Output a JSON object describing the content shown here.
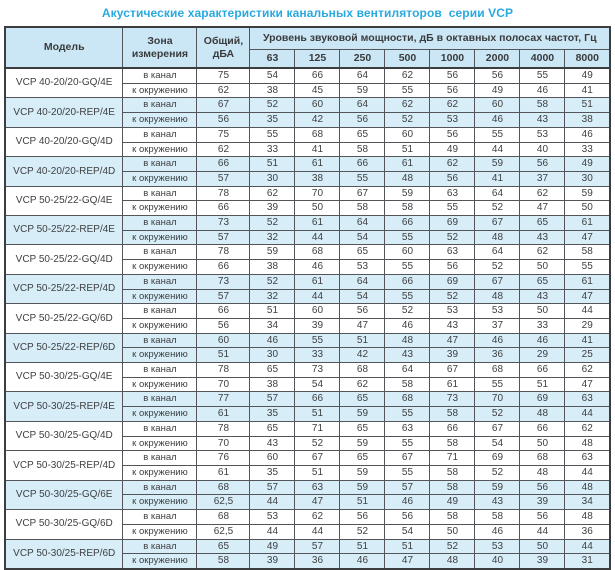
{
  "title": "Акустические характеристики канальных вентиляторов  серии VCP",
  "colors": {
    "title_accent": "#29a9e0",
    "header_bg": "#cbe7f5",
    "shaded_row_bg": "#d7edf8",
    "border": "#54555a",
    "text": "#3f4042"
  },
  "table": {
    "col_model": "Модель",
    "col_zone": "Зона измерения",
    "col_total": "Общий, дБА",
    "band_header": "Уровень звуковой мощности, дБ в октавных полосах частот, Гц",
    "frequencies": [
      "63",
      "125",
      "250",
      "500",
      "1000",
      "2000",
      "4000",
      "8000"
    ],
    "zone_in_duct": "в канал",
    "zone_ambient": "к окружению",
    "models": [
      {
        "name": "VCP 40-20/20-GQ/4E",
        "shaded": false,
        "in_duct": {
          "total": "75",
          "bands": [
            "54",
            "66",
            "64",
            "62",
            "56",
            "56",
            "55",
            "49"
          ]
        },
        "ambient": {
          "total": "62",
          "bands": [
            "38",
            "45",
            "59",
            "55",
            "56",
            "49",
            "46",
            "41"
          ]
        }
      },
      {
        "name": "VCP 40-20/20-REP/4E",
        "shaded": true,
        "in_duct": {
          "total": "67",
          "bands": [
            "52",
            "60",
            "64",
            "62",
            "62",
            "60",
            "58",
            "51"
          ]
        },
        "ambient": {
          "total": "56",
          "bands": [
            "35",
            "42",
            "56",
            "52",
            "53",
            "46",
            "43",
            "38"
          ]
        }
      },
      {
        "name": "VCP 40-20/20-GQ/4D",
        "shaded": false,
        "in_duct": {
          "total": "75",
          "bands": [
            "55",
            "68",
            "65",
            "60",
            "56",
            "55",
            "53",
            "46"
          ]
        },
        "ambient": {
          "total": "62",
          "bands": [
            "33",
            "41",
            "58",
            "51",
            "49",
            "44",
            "40",
            "33"
          ]
        }
      },
      {
        "name": "VCP 40-20/20-REP/4D",
        "shaded": true,
        "in_duct": {
          "total": "66",
          "bands": [
            "51",
            "61",
            "66",
            "61",
            "62",
            "59",
            "56",
            "49"
          ]
        },
        "ambient": {
          "total": "57",
          "bands": [
            "30",
            "38",
            "55",
            "48",
            "56",
            "41",
            "37",
            "30"
          ]
        }
      },
      {
        "name": "VCP 50-25/22-GQ/4E",
        "shaded": false,
        "in_duct": {
          "total": "78",
          "bands": [
            "62",
            "70",
            "67",
            "59",
            "63",
            "64",
            "62",
            "59"
          ]
        },
        "ambient": {
          "total": "66",
          "bands": [
            "39",
            "50",
            "58",
            "58",
            "55",
            "52",
            "47",
            "50"
          ]
        }
      },
      {
        "name": "VCP 50-25/22-REP/4E",
        "shaded": true,
        "in_duct": {
          "total": "73",
          "bands": [
            "52",
            "61",
            "64",
            "66",
            "69",
            "67",
            "65",
            "61"
          ]
        },
        "ambient": {
          "total": "57",
          "bands": [
            "32",
            "44",
            "54",
            "55",
            "52",
            "48",
            "43",
            "47"
          ]
        }
      },
      {
        "name": "VCP 50-25/22-GQ/4D",
        "shaded": false,
        "in_duct": {
          "total": "78",
          "bands": [
            "59",
            "68",
            "65",
            "60",
            "63",
            "64",
            "62",
            "58"
          ]
        },
        "ambient": {
          "total": "66",
          "bands": [
            "38",
            "46",
            "53",
            "55",
            "56",
            "52",
            "50",
            "55"
          ]
        }
      },
      {
        "name": "VCP 50-25/22-REP/4D",
        "shaded": true,
        "in_duct": {
          "total": "73",
          "bands": [
            "52",
            "61",
            "64",
            "66",
            "69",
            "67",
            "65",
            "61"
          ]
        },
        "ambient": {
          "total": "57",
          "bands": [
            "32",
            "44",
            "54",
            "55",
            "52",
            "48",
            "43",
            "47"
          ]
        }
      },
      {
        "name": "VCP 50-25/22-GQ/6D",
        "shaded": false,
        "in_duct": {
          "total": "66",
          "bands": [
            "51",
            "60",
            "56",
            "52",
            "53",
            "53",
            "50",
            "44"
          ]
        },
        "ambient": {
          "total": "56",
          "bands": [
            "34",
            "39",
            "47",
            "46",
            "43",
            "37",
            "33",
            "29"
          ]
        }
      },
      {
        "name": "VCP 50-25/22-REP/6D",
        "shaded": true,
        "in_duct": {
          "total": "60",
          "bands": [
            "46",
            "55",
            "51",
            "48",
            "47",
            "46",
            "46",
            "41"
          ]
        },
        "ambient": {
          "total": "51",
          "bands": [
            "30",
            "33",
            "42",
            "43",
            "39",
            "36",
            "29",
            "25"
          ]
        }
      },
      {
        "name": "VCP 50-30/25-GQ/4E",
        "shaded": false,
        "in_duct": {
          "total": "78",
          "bands": [
            "65",
            "73",
            "68",
            "64",
            "67",
            "68",
            "66",
            "62"
          ]
        },
        "ambient": {
          "total": "70",
          "bands": [
            "38",
            "54",
            "62",
            "58",
            "61",
            "55",
            "51",
            "47"
          ]
        }
      },
      {
        "name": "VCP 50-30/25-REP/4E",
        "shaded": true,
        "in_duct": {
          "total": "77",
          "bands": [
            "57",
            "66",
            "65",
            "68",
            "73",
            "70",
            "69",
            "63"
          ]
        },
        "ambient": {
          "total": "61",
          "bands": [
            "35",
            "51",
            "59",
            "55",
            "58",
            "52",
            "48",
            "44"
          ]
        }
      },
      {
        "name": "VCP 50-30/25-GQ/4D",
        "shaded": false,
        "in_duct": {
          "total": "78",
          "bands": [
            "65",
            "71",
            "65",
            "63",
            "66",
            "67",
            "66",
            "62"
          ]
        },
        "ambient": {
          "total": "70",
          "bands": [
            "43",
            "52",
            "59",
            "55",
            "58",
            "54",
            "50",
            "48"
          ]
        }
      },
      {
        "name": "VCP 50-30/25-REP/4D",
        "shaded": false,
        "in_duct": {
          "total": "76",
          "bands": [
            "60",
            "67",
            "65",
            "67",
            "71",
            "69",
            "68",
            "63"
          ]
        },
        "ambient": {
          "total": "61",
          "bands": [
            "35",
            "51",
            "59",
            "55",
            "58",
            "52",
            "48",
            "44"
          ]
        }
      },
      {
        "name": "VCP 50-30/25-GQ/6E",
        "shaded": true,
        "in_duct": {
          "total": "68",
          "bands": [
            "57",
            "63",
            "59",
            "57",
            "58",
            "59",
            "56",
            "48"
          ]
        },
        "ambient": {
          "total": "62,5",
          "bands": [
            "44",
            "47",
            "51",
            "46",
            "49",
            "43",
            "39",
            "34"
          ]
        }
      },
      {
        "name": "VCP 50-30/25-GQ/6D",
        "shaded": false,
        "in_duct": {
          "total": "68",
          "bands": [
            "53",
            "62",
            "56",
            "56",
            "58",
            "58",
            "56",
            "48"
          ]
        },
        "ambient": {
          "total": "62,5",
          "bands": [
            "44",
            "44",
            "52",
            "54",
            "50",
            "46",
            "44",
            "36"
          ]
        }
      },
      {
        "name": "VCP 50-30/25-REP/6D",
        "shaded": true,
        "in_duct": {
          "total": "65",
          "bands": [
            "49",
            "57",
            "51",
            "51",
            "52",
            "53",
            "50",
            "44"
          ]
        },
        "ambient": {
          "total": "58",
          "bands": [
            "39",
            "36",
            "46",
            "47",
            "48",
            "40",
            "39",
            "31"
          ]
        }
      }
    ]
  }
}
